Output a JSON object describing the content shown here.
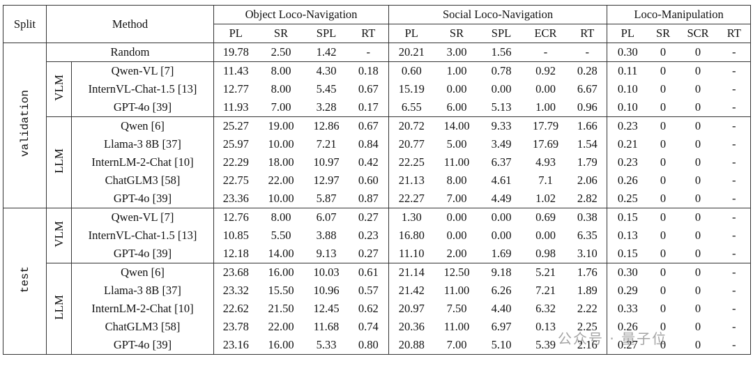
{
  "table": {
    "header": {
      "split": "Split",
      "method": "Method",
      "groups": [
        {
          "label": "Object Loco-Navigation",
          "metrics": [
            "PL",
            "SR",
            "SPL",
            "RT"
          ]
        },
        {
          "label": "Social Loco-Navigation",
          "metrics": [
            "PL",
            "SR",
            "SPL",
            "ECR",
            "RT"
          ]
        },
        {
          "label": "Loco-Manipulation",
          "metrics": [
            "PL",
            "SR",
            "SCR",
            "RT"
          ]
        }
      ]
    },
    "splits": [
      {
        "label": "validation",
        "random": {
          "method": "Random",
          "cells": [
            "19.78",
            "2.50",
            "1.42",
            "-",
            "20.21",
            "3.00",
            "1.56",
            "-",
            "-",
            "0.30",
            "0",
            "0",
            "-"
          ]
        },
        "groups": [
          {
            "label": "VLM",
            "rows": [
              {
                "method": "Qwen-VL [7]",
                "cells": [
                  "11.43",
                  "8.00",
                  "4.30",
                  "0.18",
                  "0.60",
                  "1.00",
                  "0.78",
                  "0.92",
                  "0.28",
                  "0.11",
                  "0",
                  "0",
                  "-"
                ]
              },
              {
                "method": "InternVL-Chat-1.5 [13]",
                "cells": [
                  "12.77",
                  "8.00",
                  "5.45",
                  "0.67",
                  "15.19",
                  "0.00",
                  "0.00",
                  "0.00",
                  "6.67",
                  "0.10",
                  "0",
                  "0",
                  "-"
                ]
              },
              {
                "method": "GPT-4o [39]",
                "cells": [
                  "11.93",
                  "7.00",
                  "3.28",
                  "0.17",
                  "6.55",
                  "6.00",
                  "5.13",
                  "1.00",
                  "0.96",
                  "0.10",
                  "0",
                  "0",
                  "-"
                ]
              }
            ]
          },
          {
            "label": "LLM",
            "rows": [
              {
                "method": "Qwen [6]",
                "cells": [
                  "25.27",
                  "19.00",
                  "12.86",
                  "0.67",
                  "20.72",
                  "14.00",
                  "9.33",
                  "17.79",
                  "1.66",
                  "0.23",
                  "0",
                  "0",
                  "-"
                ]
              },
              {
                "method": "Llama-3 8B [37]",
                "cells": [
                  "25.97",
                  "10.00",
                  "7.21",
                  "0.84",
                  "20.77",
                  "5.00",
                  "3.49",
                  "17.69",
                  "1.54",
                  "0.21",
                  "0",
                  "0",
                  "-"
                ]
              },
              {
                "method": "InternLM-2-Chat [10]",
                "cells": [
                  "22.29",
                  "18.00",
                  "10.97",
                  "0.42",
                  "22.25",
                  "11.00",
                  "6.37",
                  "4.93",
                  "1.79",
                  "0.23",
                  "0",
                  "0",
                  "-"
                ]
              },
              {
                "method": "ChatGLM3 [58]",
                "cells": [
                  "22.75",
                  "22.00",
                  "12.97",
                  "0.60",
                  "21.13",
                  "8.00",
                  "4.61",
                  "7.1",
                  "2.06",
                  "0.26",
                  "0",
                  "0",
                  "-"
                ]
              },
              {
                "method": "GPT-4o [39]",
                "cells": [
                  "23.36",
                  "10.00",
                  "5.87",
                  "0.87",
                  "22.27",
                  "7.00",
                  "4.49",
                  "1.02",
                  "2.82",
                  "0.25",
                  "0",
                  "0",
                  "-"
                ]
              }
            ]
          }
        ]
      },
      {
        "label": "test",
        "groups": [
          {
            "label": "VLM",
            "rows": [
              {
                "method": "Qwen-VL [7]",
                "cells": [
                  "12.76",
                  "8.00",
                  "6.07",
                  "0.27",
                  "1.30",
                  "0.00",
                  "0.00",
                  "0.69",
                  "0.38",
                  "0.15",
                  "0",
                  "0",
                  "-"
                ]
              },
              {
                "method": "InternVL-Chat-1.5 [13]",
                "cells": [
                  "10.85",
                  "5.50",
                  "3.88",
                  "0.23",
                  "16.80",
                  "0.00",
                  "0.00",
                  "0.00",
                  "6.35",
                  "0.13",
                  "0",
                  "0",
                  "-"
                ]
              },
              {
                "method": "GPT-4o [39]",
                "cells": [
                  "12.18",
                  "14.00",
                  "9.13",
                  "0.27",
                  "11.10",
                  "2.00",
                  "1.69",
                  "0.98",
                  "3.10",
                  "0.15",
                  "0",
                  "0",
                  "-"
                ]
              }
            ]
          },
          {
            "label": "LLM",
            "rows": [
              {
                "method": "Qwen [6]",
                "cells": [
                  "23.68",
                  "16.00",
                  "10.03",
                  "0.61",
                  "21.14",
                  "12.50",
                  "9.18",
                  "5.21",
                  "1.76",
                  "0.30",
                  "0",
                  "0",
                  "-"
                ]
              },
              {
                "method": "Llama-3 8B [37]",
                "cells": [
                  "23.32",
                  "15.50",
                  "10.96",
                  "0.57",
                  "21.42",
                  "11.00",
                  "6.26",
                  "7.21",
                  "1.89",
                  "0.29",
                  "0",
                  "0",
                  "-"
                ]
              },
              {
                "method": "InternLM-2-Chat [10]",
                "cells": [
                  "22.62",
                  "21.50",
                  "12.45",
                  "0.62",
                  "20.97",
                  "7.50",
                  "4.40",
                  "6.32",
                  "2.22",
                  "0.33",
                  "0",
                  "0",
                  "-"
                ]
              },
              {
                "method": "ChatGLM3 [58]",
                "cells": [
                  "23.78",
                  "22.00",
                  "11.68",
                  "0.74",
                  "20.36",
                  "11.00",
                  "6.97",
                  "0.13",
                  "2.25",
                  "0.26",
                  "0",
                  "0",
                  "-"
                ]
              },
              {
                "method": "GPT-4o [39]",
                "cells": [
                  "23.16",
                  "16.00",
                  "5.33",
                  "0.80",
                  "20.88",
                  "7.00",
                  "5.10",
                  "5.39",
                  "2.16",
                  "0.27",
                  "0",
                  "0",
                  "-"
                ]
              }
            ]
          }
        ]
      }
    ],
    "watermark": "公众号 · 量子位"
  }
}
